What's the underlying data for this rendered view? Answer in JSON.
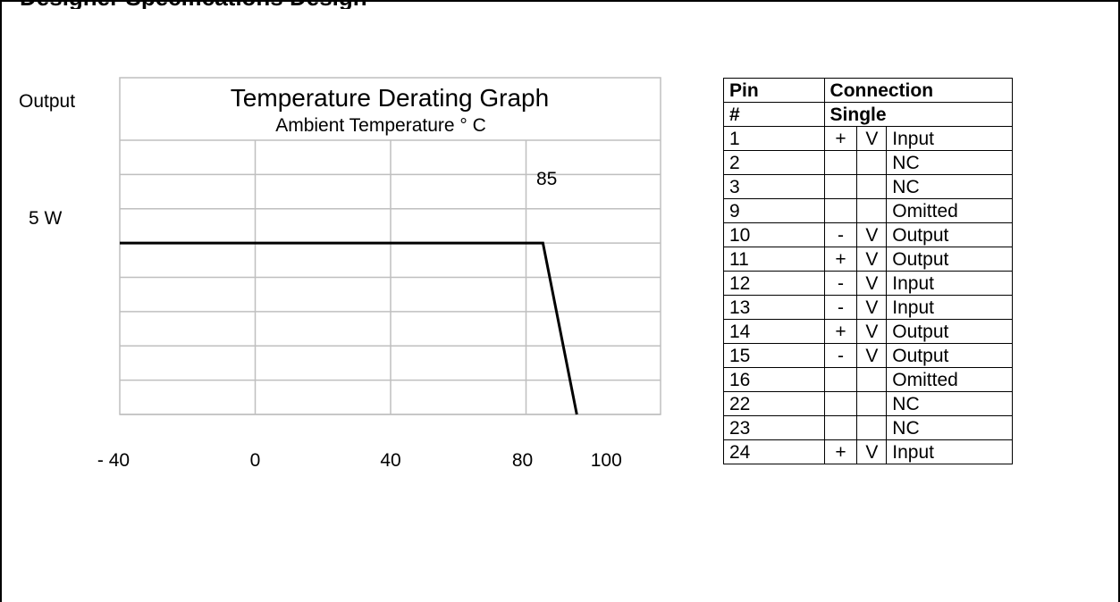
{
  "page": {
    "cut_title": "Designer Specifications Design"
  },
  "chart_data": {
    "type": "line",
    "title": "Temperature Derating Graph",
    "subtitle": "Ambient Temperature ° C",
    "ylabel": "Output",
    "y_tick_label": "5 W",
    "x_tick_labels": [
      "- 40",
      "0",
      "40",
      "80",
      "100"
    ],
    "annotation": "85",
    "series": [
      {
        "x": [
          -40,
          85,
          95
        ],
        "y": [
          5,
          5,
          0
        ]
      }
    ],
    "xlim": [
      -40,
      120
    ],
    "ylim": [
      0,
      8
    ],
    "grid": true
  },
  "pin_table": {
    "header1": [
      "Pin",
      "Connection"
    ],
    "header2": [
      "#",
      "Single"
    ],
    "rows": [
      {
        "pin": "1",
        "sign": "+",
        "v": "V",
        "fn": "Input"
      },
      {
        "pin": "2",
        "sign": "",
        "v": "",
        "fn": "NC"
      },
      {
        "pin": "3",
        "sign": "",
        "v": "",
        "fn": "NC"
      },
      {
        "pin": "9",
        "sign": "",
        "v": "",
        "fn": "Omitted"
      },
      {
        "pin": "10",
        "sign": "-",
        "v": "V",
        "fn": "Output"
      },
      {
        "pin": "11",
        "sign": "+",
        "v": "V",
        "fn": "Output"
      },
      {
        "pin": "12",
        "sign": "-",
        "v": "V",
        "fn": "Input"
      },
      {
        "pin": "13",
        "sign": "-",
        "v": "V",
        "fn": "Input"
      },
      {
        "pin": "14",
        "sign": "+",
        "v": "V",
        "fn": "Output"
      },
      {
        "pin": "15",
        "sign": "-",
        "v": "V",
        "fn": "Output"
      },
      {
        "pin": "16",
        "sign": "",
        "v": "",
        "fn": "Omitted"
      },
      {
        "pin": "22",
        "sign": "",
        "v": "",
        "fn": "NC"
      },
      {
        "pin": "23",
        "sign": "",
        "v": "",
        "fn": "NC"
      },
      {
        "pin": "24",
        "sign": "+",
        "v": "V",
        "fn": "Input"
      }
    ]
  }
}
